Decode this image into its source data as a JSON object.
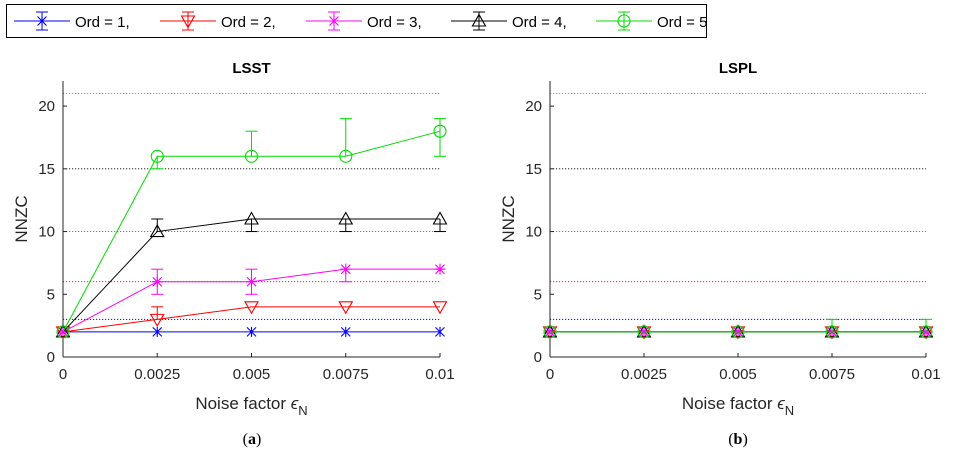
{
  "legend": [
    {
      "label": "Ord = 1,",
      "color": "#0000ff",
      "marker": "star"
    },
    {
      "label": "Ord = 2,",
      "color": "#ff0000",
      "marker": "triangle-down"
    },
    {
      "label": "Ord = 3,",
      "color": "#ff00ff",
      "marker": "asterisk"
    },
    {
      "label": "Ord = 4,",
      "color": "#000000",
      "marker": "triangle-up"
    },
    {
      "label": "Ord = 5",
      "color": "#00dd00",
      "marker": "circle"
    }
  ],
  "captions": {
    "a": {
      "open": "(",
      "letter": "a",
      "close": ")"
    },
    "b": {
      "open": "(",
      "letter": "b",
      "close": ")"
    }
  },
  "chart_data": [
    {
      "type": "line",
      "title": "LSST",
      "xlabel": "Noise factor ",
      "xlabel_symbol": "ϵ",
      "xlabel_subscript": "N",
      "ylabel": "NNZC",
      "x": [
        0,
        0.0025,
        0.005,
        0.0075,
        0.01
      ],
      "xticklabels": [
        "0",
        "0.0025",
        "0.005",
        "0.0075",
        "0.01"
      ],
      "xlim": [
        0,
        0.01
      ],
      "ylim": [
        0,
        22
      ],
      "yticks": [
        0,
        5,
        10,
        15,
        20
      ],
      "reference_lines": [
        {
          "y": 3,
          "color": "#0000ff"
        },
        {
          "y": 6,
          "color": "#ff0000"
        },
        {
          "y": 10,
          "color": "#ff00ff"
        },
        {
          "y": 15,
          "color": "#000000"
        },
        {
          "y": 21,
          "color": "#00dd00"
        }
      ],
      "series": [
        {
          "name": "Ord = 1",
          "color": "#0000ff",
          "marker": "star",
          "values": [
            2,
            2,
            2,
            2,
            2
          ],
          "err_low": [
            0,
            0,
            0,
            0,
            0
          ],
          "err_high": [
            0,
            0,
            0,
            0,
            0
          ]
        },
        {
          "name": "Ord = 2",
          "color": "#ff0000",
          "marker": "triangle-down",
          "values": [
            2,
            3,
            4,
            4,
            4
          ],
          "err_low": [
            0,
            0,
            0,
            0,
            0
          ],
          "err_high": [
            0,
            1,
            0,
            0,
            0
          ]
        },
        {
          "name": "Ord = 3",
          "color": "#ff00ff",
          "marker": "asterisk",
          "values": [
            2,
            6,
            6,
            7,
            7
          ],
          "err_low": [
            0,
            1,
            1,
            1,
            0
          ],
          "err_high": [
            0,
            1,
            1,
            0,
            0
          ]
        },
        {
          "name": "Ord = 4",
          "color": "#000000",
          "marker": "triangle-up",
          "values": [
            2,
            10,
            11,
            11,
            11
          ],
          "err_low": [
            0,
            0,
            1,
            1,
            1
          ],
          "err_high": [
            0,
            1,
            0,
            0,
            0
          ]
        },
        {
          "name": "Ord = 5",
          "color": "#00dd00",
          "marker": "circle",
          "values": [
            2,
            16,
            16,
            16,
            18
          ],
          "err_low": [
            0,
            1,
            0,
            0,
            2
          ],
          "err_high": [
            0,
            0,
            2,
            3,
            1
          ]
        }
      ]
    },
    {
      "type": "line",
      "title": "LSPL",
      "xlabel": "Noise factor ",
      "xlabel_symbol": "ϵ",
      "xlabel_subscript": "N",
      "ylabel": "NNZC",
      "x": [
        0,
        0.0025,
        0.005,
        0.0075,
        0.01
      ],
      "xticklabels": [
        "0",
        "0.0025",
        "0.005",
        "0.0075",
        "0.01"
      ],
      "xlim": [
        0,
        0.01
      ],
      "ylim": [
        0,
        22
      ],
      "yticks": [
        0,
        5,
        10,
        15,
        20
      ],
      "reference_lines": [
        {
          "y": 3,
          "color": "#0000ff"
        },
        {
          "y": 6,
          "color": "#ff0000"
        },
        {
          "y": 10,
          "color": "#ff00ff"
        },
        {
          "y": 15,
          "color": "#000000"
        },
        {
          "y": 21,
          "color": "#00dd00"
        }
      ],
      "series": [
        {
          "name": "Ord = 1",
          "color": "#0000ff",
          "marker": "star",
          "values": [
            2,
            2,
            2,
            2,
            2
          ],
          "err_low": [
            0,
            0,
            0,
            0,
            0
          ],
          "err_high": [
            0,
            0,
            0,
            0,
            0
          ]
        },
        {
          "name": "Ord = 2",
          "color": "#ff0000",
          "marker": "triangle-down",
          "values": [
            2,
            2,
            2,
            2,
            2
          ],
          "err_low": [
            0,
            0,
            0,
            0,
            0
          ],
          "err_high": [
            0,
            0,
            0,
            0,
            0
          ]
        },
        {
          "name": "Ord = 3",
          "color": "#ff00ff",
          "marker": "asterisk",
          "values": [
            2,
            2,
            2,
            2,
            2
          ],
          "err_low": [
            0,
            0,
            0,
            0,
            0
          ],
          "err_high": [
            0,
            0,
            0,
            0,
            0
          ]
        },
        {
          "name": "Ord = 4",
          "color": "#000000",
          "marker": "triangle-up",
          "values": [
            2,
            2,
            2,
            2,
            2
          ],
          "err_low": [
            0,
            0,
            0,
            0,
            0
          ],
          "err_high": [
            0,
            0,
            0,
            0,
            0
          ]
        },
        {
          "name": "Ord = 5",
          "color": "#00dd00",
          "marker": "circle",
          "values": [
            2,
            2,
            2,
            2,
            2
          ],
          "err_low": [
            0,
            0,
            0,
            0,
            0
          ],
          "err_high": [
            0,
            0,
            0,
            1,
            1
          ]
        }
      ]
    }
  ]
}
